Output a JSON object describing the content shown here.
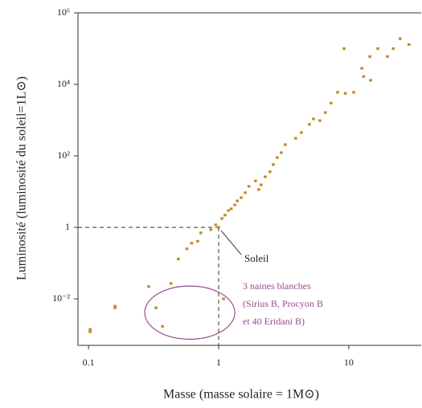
{
  "chart_data": {
    "type": "scatter",
    "x_label": "Masse (masse solaire = 1M⊙)",
    "y_label": "Luminosité (luminosité du soleil=1L⊙)",
    "log_x": true,
    "log_y": true,
    "xlim": [
      0.083,
      36
    ],
    "ylim": [
      0.0005,
      1000000
    ],
    "xticks": [
      0.1,
      1,
      10
    ],
    "yticks": [
      {
        "value": 0.01,
        "label": "10⁻²"
      },
      1,
      {
        "value": 100,
        "label": "10²"
      },
      {
        "value": 10000,
        "label": "10⁴"
      },
      {
        "value": 1000000,
        "label": "10⁶"
      }
    ],
    "series": [
      {
        "color": "#c48a25",
        "x": [
          0.103,
          0.103,
          0.16,
          0.16,
          0.29,
          0.43,
          0.49,
          0.57,
          0.62,
          0.69,
          0.73,
          0.87,
          0.95,
          1,
          1.06,
          1.12,
          1.19,
          1.25,
          1.33,
          1.39,
          1.49,
          1.6,
          1.71,
          1.92,
          2.03,
          2.12,
          2.28,
          2.48,
          2.63,
          2.82,
          3.03,
          3.25,
          3.91,
          4.32,
          4.98,
          5.35,
          6.0,
          6.6,
          7.3,
          8.2,
          9.4,
          9.2,
          10.9,
          12.6,
          13.0,
          14.5,
          14.7,
          16.7,
          19.8,
          22,
          24.8,
          29
        ],
        "values": [
          0.0014,
          0.0012,
          0.0056,
          0.0062,
          0.022,
          0.027,
          0.13,
          0.25,
          0.36,
          0.41,
          0.7,
          0.86,
          1.17,
          1,
          1.77,
          2.2,
          2.96,
          3.3,
          4.25,
          5.5,
          6.8,
          9.3,
          14,
          20,
          11.4,
          15.5,
          26,
          36,
          57,
          90,
          123,
          206,
          310,
          450,
          760,
          1080,
          970,
          1630,
          3000,
          6000,
          5600,
          100000,
          6000,
          28000,
          16500,
          60000,
          13000,
          100000,
          60000,
          100000,
          190000,
          130000
        ]
      },
      {
        "color": "#c48a25",
        "x": [
          0.33,
          0.37,
          1.09
        ],
        "values": [
          0.0056,
          0.0017,
          0.01
        ]
      }
    ],
    "sun": {
      "x": 1,
      "y": 1,
      "label": "Soleil"
    },
    "white_dwarfs": {
      "color": "#9a4a8a",
      "lines": [
        "3 naines blanches",
        "(Sirius B, Procyon B",
        "et 40 Eridani B)"
      ]
    }
  }
}
